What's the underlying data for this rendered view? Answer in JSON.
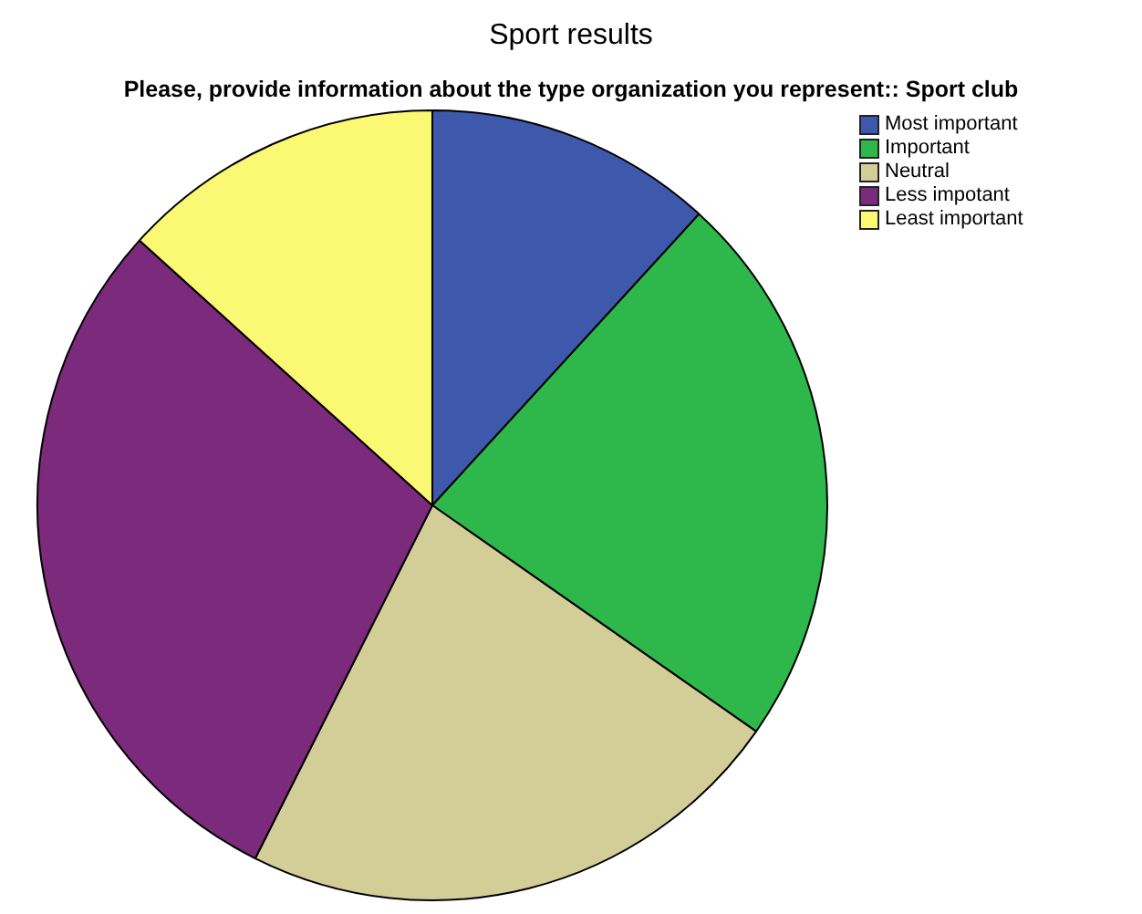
{
  "chart_data": {
    "type": "pie",
    "title": "Sport results",
    "subtitle": "Please, provide information about the type organization you represent:: Sport club",
    "categories": [
      "Most important",
      "Important",
      "Neutral",
      "Less impotant",
      "Least important"
    ],
    "values": [
      11.8,
      22.9,
      22.7,
      29.3,
      13.3
    ],
    "colors": [
      "#3e58ac",
      "#2eb84b",
      "#d3ce97",
      "#7b2a7c",
      "#fbf873"
    ],
    "legend": "top right"
  }
}
